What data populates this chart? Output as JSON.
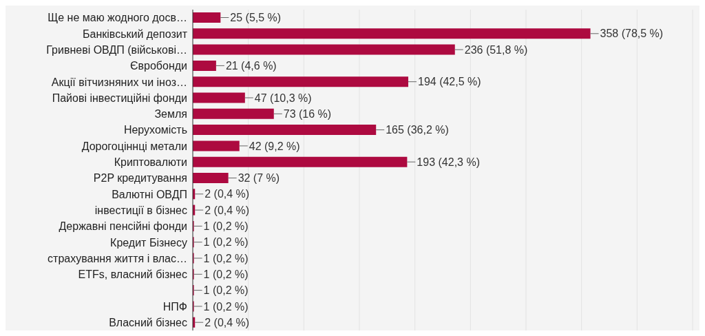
{
  "chart_data": {
    "type": "bar",
    "orientation": "horizontal",
    "categories": [
      "Ще не маю жодного досв…",
      "Банківський депозит",
      "Гривневі ОВДП (військові…",
      "Євробонди",
      "Акції вітчизняних чи іноз…",
      "Пайові інвестиційні фонди",
      "Земля",
      "Нерухомість",
      "Дорогоціннці метали",
      "Криптовалюти",
      "P2P кредитування",
      "Валютні ОВДП",
      "інвестиції в бізнес",
      "Державні пенсійні фонди",
      "Кредит Бізнесу",
      "страхування життя і влас…",
      "ETFs, власний бізнес",
      null,
      "НПФ",
      "Власний бізнес"
    ],
    "values": [
      25,
      358,
      236,
      21,
      194,
      47,
      73,
      165,
      42,
      193,
      32,
      2,
      2,
      1,
      1,
      1,
      1,
      1,
      1,
      2
    ],
    "value_labels": [
      "25 (5,5 %)",
      "358 (78,5 %)",
      "236 (51,8 %)",
      "21 (4,6 %)",
      "194 (42,5 %)",
      "47 (10,3 %)",
      "73 (16 %)",
      "165 (36,2 %)",
      "42 (9,2 %)",
      "193 (42,3 %)",
      "32 (7 %)",
      "2 (0,4 %)",
      "2 (0,4 %)",
      "1 (0,2 %)",
      "1 (0,2 %)",
      "1 (0,2 %)",
      "1 (0,2 %)",
      "1 (0,2 %)",
      "1 (0,2 %)",
      "2 (0,4 %)"
    ],
    "color": "#ad0a40",
    "xlim": [
      0,
      450
    ],
    "xticks": [
      {
        "value": 0,
        "label": null
      },
      {
        "value": 50,
        "label": null
      },
      {
        "value": 100,
        "label": null
      },
      {
        "value": 150,
        "label": null
      },
      {
        "value": 200,
        "label": null
      },
      {
        "value": 250,
        "label": null
      },
      {
        "value": 300,
        "label": null
      },
      {
        "value": 350,
        "label": null
      },
      {
        "value": 400,
        "label": null
      },
      {
        "value": 450,
        "label": null
      }
    ],
    "grid": "x",
    "tick_labels": "y"
  }
}
